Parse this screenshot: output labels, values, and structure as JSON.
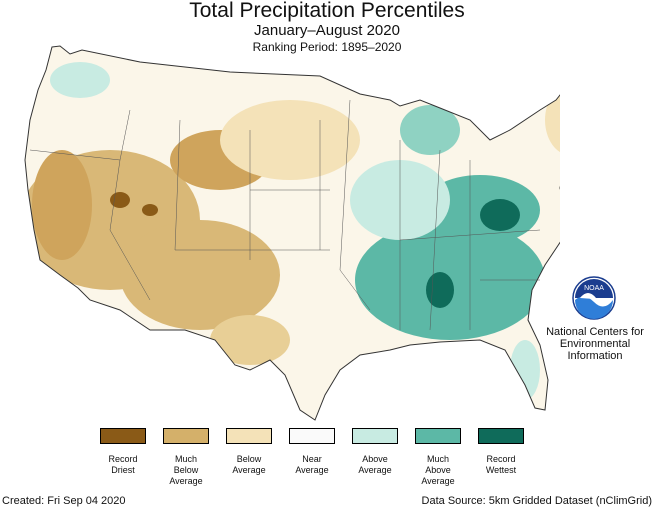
{
  "title": "Total Precipitation Percentiles",
  "subtitle": "January–August 2020",
  "ranking_period": "Ranking Period: 1895–2020",
  "organization": "National Centers for Environmental Information",
  "logo_text": "NOAA",
  "legend": [
    {
      "label": "Record\nDriest",
      "color": "#8a5a17"
    },
    {
      "label": "Much\nBelow\nAverage",
      "color": "#d4b06a"
    },
    {
      "label": "Below\nAverage",
      "color": "#f4e2b8"
    },
    {
      "label": "Near\nAverage",
      "color": "#fafafa"
    },
    {
      "label": "Above\nAverage",
      "color": "#c8ebe2"
    },
    {
      "label": "Much\nAbove\nAverage",
      "color": "#5cb8a6"
    },
    {
      "label": "Record\nWettest",
      "color": "#0f6b5a"
    }
  ],
  "created": "Created: Fri Sep 04 2020",
  "data_source": "Data Source: 5km Gridded Dataset (nClimGrid)"
}
